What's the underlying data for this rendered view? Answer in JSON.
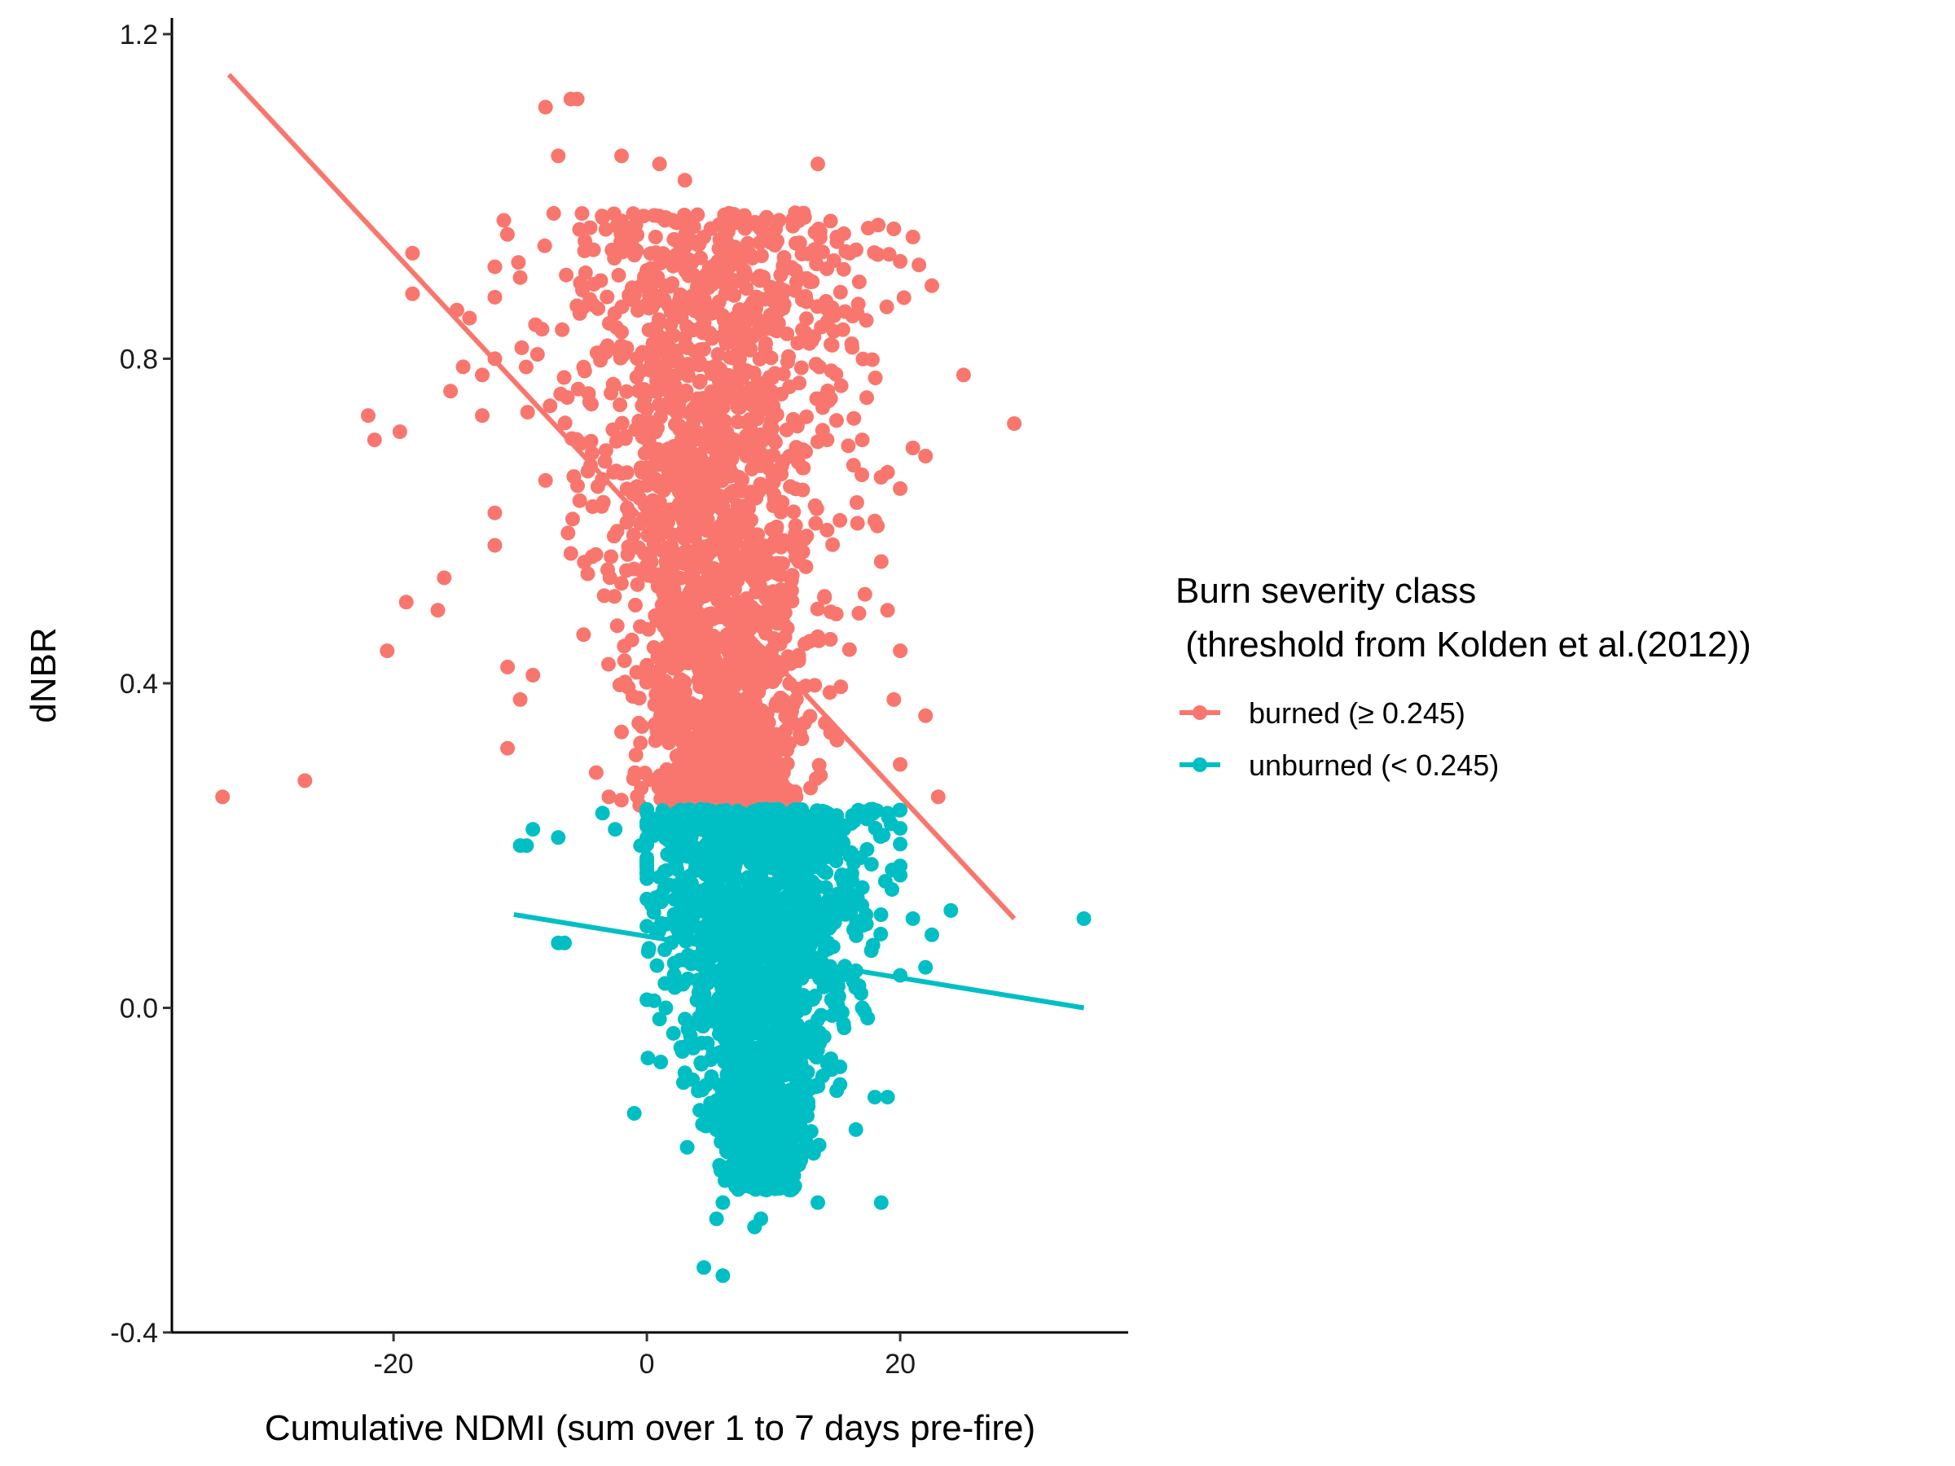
{
  "chart_data": {
    "type": "scatter",
    "title": "",
    "xlabel": "Cumulative NDMI (sum over 1 to 7 days pre-fire)",
    "ylabel": "dNBR",
    "xlim": [
      -37.5,
      38
    ],
    "ylim": [
      -0.4,
      1.22
    ],
    "x_ticks": [
      -20,
      0,
      20
    ],
    "x_tick_labels": [
      "-20",
      "0",
      "20"
    ],
    "y_ticks": [
      -0.4,
      0.0,
      0.4,
      0.8,
      1.2
    ],
    "y_tick_labels": [
      "-0.4",
      "0.0",
      "0.4",
      "0.8",
      "1.2"
    ],
    "grid": false,
    "legend": {
      "position": "right",
      "title_lines": [
        "Burn severity class",
        " (threshold from Kolden et al.(2012))"
      ],
      "entries": [
        "burned (≥ 0.245)",
        "unburned (< 0.245)"
      ]
    },
    "colors": {
      "burned": "#F8766D",
      "unburned": "#00BFC4"
    },
    "series": [
      {
        "name": "burned (≥ 0.245)",
        "color": "#F8766D",
        "cluster": {
          "x_range": [
            -33,
            29
          ],
          "y_range": [
            0.245,
            1.12
          ],
          "x_center": 4,
          "n_points": 2000
        },
        "points": [
          [
            -33.5,
            0.26
          ],
          [
            -27,
            0.28
          ],
          [
            -20.5,
            0.44
          ],
          [
            -21.5,
            0.7
          ],
          [
            -22,
            0.73
          ],
          [
            -19.5,
            0.71
          ],
          [
            -19,
            0.5
          ],
          [
            -18.5,
            0.93
          ],
          [
            -18.5,
            0.88
          ],
          [
            -16.5,
            0.49
          ],
          [
            -16,
            0.53
          ],
          [
            -15.5,
            0.76
          ],
          [
            -15,
            0.86
          ],
          [
            -14,
            0.85
          ],
          [
            -14.5,
            0.79
          ],
          [
            -13,
            0.73
          ],
          [
            -12,
            0.61
          ],
          [
            -12,
            0.57
          ],
          [
            -11,
            0.32
          ],
          [
            -11,
            0.42
          ],
          [
            -10,
            0.38
          ],
          [
            -9,
            0.41
          ],
          [
            -8,
            1.11
          ],
          [
            -6,
            1.12
          ],
          [
            -5.5,
            1.12
          ],
          [
            -7,
            1.05
          ],
          [
            -13,
            0.78
          ],
          [
            -12,
            0.8
          ],
          [
            -10,
            0.9
          ],
          [
            -8,
            0.65
          ],
          [
            -6,
            0.56
          ],
          [
            -5,
            0.46
          ],
          [
            -4,
            0.29
          ],
          [
            -3,
            0.26
          ],
          [
            -2,
            0.34
          ],
          [
            -2,
            1.05
          ],
          [
            1,
            1.04
          ],
          [
            3,
            1.02
          ],
          [
            7,
            0.97
          ],
          [
            9,
            0.96
          ],
          [
            12,
            0.97
          ],
          [
            13.5,
            1.04
          ],
          [
            15,
            0.95
          ],
          [
            16,
            0.93
          ],
          [
            19.5,
            0.96
          ],
          [
            20,
            0.92
          ],
          [
            21,
            0.95
          ],
          [
            22.5,
            0.89
          ],
          [
            25,
            0.78
          ],
          [
            29,
            0.72
          ],
          [
            21,
            0.69
          ],
          [
            22,
            0.68
          ],
          [
            17,
            0.7
          ],
          [
            19,
            0.66
          ],
          [
            20,
            0.64
          ],
          [
            18,
            0.6
          ],
          [
            18.5,
            0.55
          ],
          [
            19,
            0.49
          ],
          [
            20,
            0.44
          ],
          [
            19.5,
            0.38
          ],
          [
            22,
            0.36
          ],
          [
            23,
            0.26
          ],
          [
            20,
            0.3
          ],
          [
            15,
            0.33
          ],
          [
            12,
            0.55
          ],
          [
            10,
            0.7
          ],
          [
            8,
            0.85
          ]
        ],
        "fit_line": {
          "x": [
            -33,
            29
          ],
          "y": [
            1.15,
            0.11
          ]
        }
      },
      {
        "name": "unburned (< 0.245)",
        "color": "#00BFC4",
        "cluster": {
          "x_range": [
            -10,
            35
          ],
          "y_range": [
            -0.33,
            0.245
          ],
          "x_center": 9,
          "n_points": 1800
        },
        "points": [
          [
            -10,
            0.2
          ],
          [
            -9.5,
            0.2
          ],
          [
            -9,
            0.22
          ],
          [
            -7,
            0.21
          ],
          [
            -6.5,
            0.08
          ],
          [
            -7,
            0.08
          ],
          [
            -3.5,
            0.24
          ],
          [
            -2.5,
            0.22
          ],
          [
            -0.5,
            0.2
          ],
          [
            -1,
            -0.13
          ],
          [
            0,
            0.01
          ],
          [
            1.5,
            0.0
          ],
          [
            3,
            -0.08
          ],
          [
            4.5,
            -0.32
          ],
          [
            6,
            -0.33
          ],
          [
            5.5,
            -0.26
          ],
          [
            6,
            -0.24
          ],
          [
            7,
            -0.22
          ],
          [
            8.5,
            -0.27
          ],
          [
            9,
            -0.26
          ],
          [
            13.5,
            -0.24
          ],
          [
            18.5,
            -0.24
          ],
          [
            16.5,
            -0.15
          ],
          [
            18,
            -0.11
          ],
          [
            19,
            -0.11
          ],
          [
            19,
            0.24
          ],
          [
            21,
            0.11
          ],
          [
            22.5,
            0.09
          ],
          [
            24,
            0.12
          ],
          [
            34.5,
            0.11
          ],
          [
            22,
            0.05
          ],
          [
            20,
            0.04
          ],
          [
            17,
            0.0
          ],
          [
            15,
            0.12
          ],
          [
            12,
            0.18
          ]
        ],
        "fit_line": {
          "x": [
            -10.5,
            34.5
          ],
          "y": [
            0.115,
            0.0
          ]
        }
      }
    ]
  }
}
